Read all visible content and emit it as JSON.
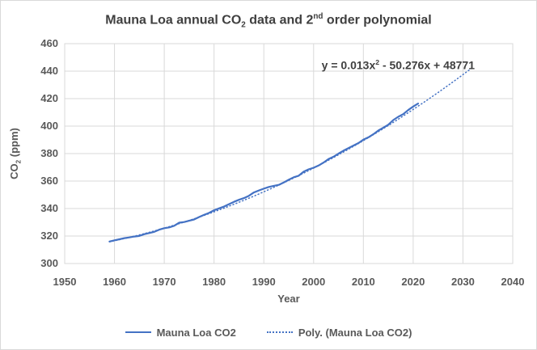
{
  "chart_data": {
    "type": "line",
    "title": {
      "part1": "Mauna Loa annual CO",
      "sub": "2",
      "part2": " data and 2",
      "sup": "nd",
      "part3": " order polynomial"
    },
    "xlabel": "Year",
    "ylabel": {
      "part1": "CO",
      "sub": "2",
      "part2": " (ppm)"
    },
    "xlim": [
      1950,
      2040
    ],
    "ylim": [
      300,
      460
    ],
    "x_ticks": [
      1950,
      1960,
      1970,
      1980,
      1990,
      2000,
      2010,
      2020,
      2030,
      2040
    ],
    "y_ticks": [
      300,
      320,
      340,
      360,
      380,
      400,
      420,
      440,
      460
    ],
    "grid": true,
    "annotation": {
      "part1": "y = 0.013x",
      "sup": "2",
      "part2": " - 50.276x + 48771"
    },
    "legend": {
      "position": "bottom",
      "entries": [
        {
          "label": "Mauna Loa CO2",
          "style": "solid"
        },
        {
          "label": "Poly. (Mauna Loa CO2)",
          "style": "dotted"
        }
      ]
    },
    "colors": {
      "series": "#4472C4",
      "trendline": "#4472C4",
      "grid": "#d9d9d9",
      "frame": "#d9d9d9",
      "text": "#595959",
      "title": "#3f3f3f"
    },
    "series": [
      {
        "name": "Mauna Loa CO2",
        "type": "line",
        "x": [
          1959,
          1960,
          1961,
          1962,
          1963,
          1964,
          1965,
          1966,
          1967,
          1968,
          1969,
          1970,
          1971,
          1972,
          1973,
          1974,
          1975,
          1976,
          1977,
          1978,
          1979,
          1980,
          1981,
          1982,
          1983,
          1984,
          1985,
          1986,
          1987,
          1988,
          1989,
          1990,
          1991,
          1992,
          1993,
          1994,
          1995,
          1996,
          1997,
          1998,
          1999,
          2000,
          2001,
          2002,
          2003,
          2004,
          2005,
          2006,
          2007,
          2008,
          2009,
          2010,
          2011,
          2012,
          2013,
          2014,
          2015,
          2016,
          2017,
          2018,
          2019,
          2020,
          2021
        ],
        "values": [
          315.98,
          316.91,
          317.64,
          318.45,
          318.99,
          319.62,
          320.04,
          321.37,
          322.18,
          323.05,
          324.62,
          325.68,
          326.32,
          327.46,
          329.68,
          330.19,
          331.12,
          332.03,
          333.84,
          335.41,
          336.84,
          338.76,
          340.12,
          341.48,
          343.15,
          344.87,
          346.35,
          347.61,
          349.31,
          351.69,
          353.2,
          354.45,
          355.7,
          356.54,
          357.21,
          358.96,
          360.97,
          362.74,
          363.88,
          366.84,
          368.54,
          369.71,
          371.32,
          373.45,
          375.98,
          377.7,
          379.98,
          382.09,
          384.02,
          385.83,
          387.64,
          390.1,
          391.85,
          394.06,
          396.74,
          398.81,
          401.01,
          404.41,
          406.76,
          408.72,
          411.65,
          414.21,
          416.41
        ]
      },
      {
        "name": "Poly. (Mauna Loa CO2)",
        "type": "polynomial-trendline",
        "order": 2,
        "fit": {
          "a": 0.0135,
          "b": 0.755,
          "c": 315.8,
          "t0": 1959
        },
        "x_start": 1959,
        "x_end": 2032
      }
    ]
  }
}
